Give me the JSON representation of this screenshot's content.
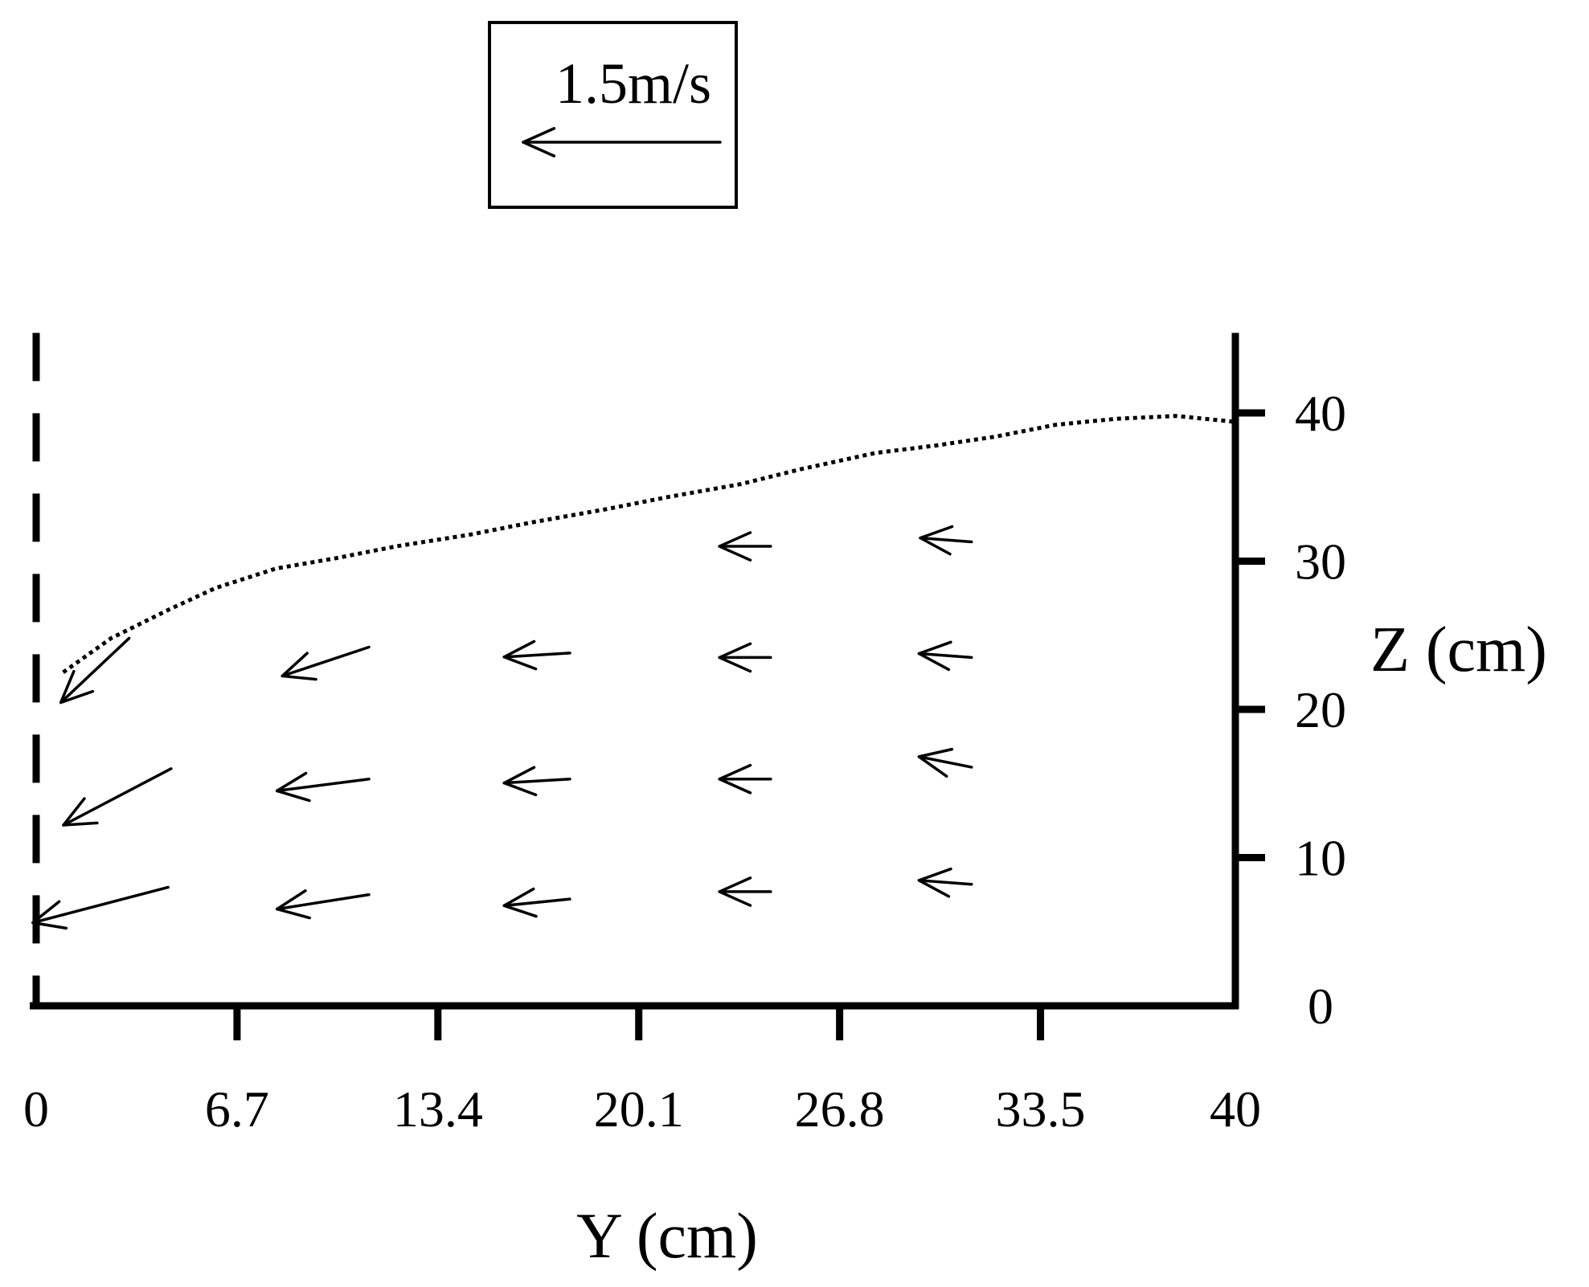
{
  "chart_data": {
    "type": "quiver",
    "title": "",
    "xlabel": "Y (cm)",
    "ylabel": "Z (cm)",
    "xlim": [
      0,
      40
    ],
    "ylim": [
      0,
      45
    ],
    "x_ticks": [
      "0",
      "6.7",
      "13.4",
      "20.1",
      "26.8",
      "33.5",
      "40"
    ],
    "x_tick_values": [
      0,
      6.7,
      13.4,
      20.1,
      26.8,
      33.5,
      40
    ],
    "y_ticks": [
      "0",
      "10",
      "20",
      "30",
      "40"
    ],
    "y_tick_values": [
      0,
      10,
      20,
      30,
      40
    ],
    "y_axis_side": "right",
    "grid": false,
    "reference_vector": {
      "label": "1.5m/s",
      "magnitude": 1.5,
      "unit": "m/s"
    },
    "vectors": [
      {
        "x": 4.4,
        "z": 8.0,
        "u": -1.03,
        "v": -0.27
      },
      {
        "x": 11.1,
        "z": 7.5,
        "u": -0.7,
        "v": -0.11
      },
      {
        "x": 17.8,
        "z": 7.2,
        "u": -0.5,
        "v": -0.05
      },
      {
        "x": 24.5,
        "z": 7.7,
        "u": -0.39,
        "v": 0.0
      },
      {
        "x": 31.2,
        "z": 8.2,
        "u": -0.4,
        "v": 0.03
      },
      {
        "x": 4.5,
        "z": 16.0,
        "u": -0.82,
        "v": -0.43
      },
      {
        "x": 11.1,
        "z": 15.3,
        "u": -0.7,
        "v": -0.09
      },
      {
        "x": 17.8,
        "z": 15.3,
        "u": -0.5,
        "v": -0.03
      },
      {
        "x": 24.5,
        "z": 15.3,
        "u": -0.39,
        "v": 0.0
      },
      {
        "x": 31.2,
        "z": 16.1,
        "u": -0.4,
        "v": 0.08
      },
      {
        "x": 3.1,
        "z": 24.8,
        "u": -0.52,
        "v": -0.49
      },
      {
        "x": 11.1,
        "z": 24.2,
        "u": -0.66,
        "v": -0.22
      },
      {
        "x": 17.8,
        "z": 23.8,
        "u": -0.5,
        "v": -0.03
      },
      {
        "x": 24.5,
        "z": 23.5,
        "u": -0.39,
        "v": 0.0
      },
      {
        "x": 31.2,
        "z": 23.5,
        "u": -0.4,
        "v": 0.03
      },
      {
        "x": 24.5,
        "z": 31.0,
        "u": -0.39,
        "v": 0.0
      },
      {
        "x": 31.2,
        "z": 31.3,
        "u": -0.39,
        "v": 0.03
      }
    ],
    "boundary_line": {
      "style": "dotted",
      "x": [
        0.9,
        2.5,
        4.5,
        6.0,
        8.0,
        10.0,
        12.0,
        14.5,
        16.5,
        19.0,
        21.0,
        23.5,
        25.5,
        28.0,
        30.0,
        32.0,
        34.0,
        36.0,
        38.0,
        40.0
      ],
      "z": [
        22.5,
        24.8,
        26.8,
        28.2,
        29.5,
        30.2,
        31.0,
        31.8,
        32.6,
        33.5,
        34.3,
        35.2,
        36.2,
        37.3,
        37.8,
        38.4,
        39.2,
        39.6,
        39.8,
        39.4
      ]
    }
  }
}
